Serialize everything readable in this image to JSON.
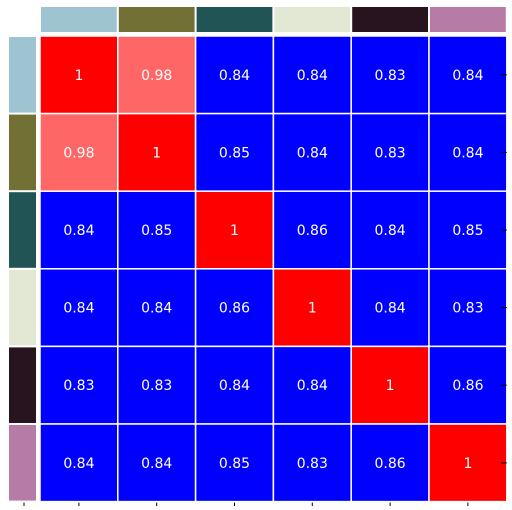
{
  "chart_data": {
    "type": "heatmap",
    "title": "",
    "xlabel": "",
    "ylabel": "",
    "rows": 6,
    "cols": 6,
    "values": [
      [
        "1",
        "0.98",
        "0.84",
        "0.84",
        "0.83",
        "0.84"
      ],
      [
        "0.98",
        "1",
        "0.85",
        "0.84",
        "0.83",
        "0.84"
      ],
      [
        "0.84",
        "0.85",
        "1",
        "0.86",
        "0.84",
        "0.85"
      ],
      [
        "0.84",
        "0.84",
        "0.86",
        "1",
        "0.84",
        "0.83"
      ],
      [
        "0.83",
        "0.83",
        "0.84",
        "0.84",
        "1",
        "0.86"
      ],
      [
        "0.84",
        "0.84",
        "0.85",
        "0.83",
        "0.86",
        "1"
      ]
    ],
    "cell_colors": [
      [
        "#ff0000",
        "#ff6666",
        "#0000ff",
        "#0000ff",
        "#0000ff",
        "#0000ff"
      ],
      [
        "#ff6666",
        "#ff0000",
        "#0000ff",
        "#0000ff",
        "#0000ff",
        "#0000ff"
      ],
      [
        "#0000ff",
        "#0000ff",
        "#ff0000",
        "#0000ff",
        "#0000ff",
        "#0000ff"
      ],
      [
        "#0000ff",
        "#0000ff",
        "#0000ff",
        "#ff0000",
        "#0000ff",
        "#0000ff"
      ],
      [
        "#0000ff",
        "#0000ff",
        "#0000ff",
        "#0000ff",
        "#ff0000",
        "#0000ff"
      ],
      [
        "#0000ff",
        "#0000ff",
        "#0000ff",
        "#0000ff",
        "#0000ff",
        "#ff0000"
      ]
    ],
    "group_colors": [
      "#9ec4d1",
      "#737036",
      "#215555",
      "#e3e8d5",
      "#27141f",
      "#b77ba7"
    ],
    "text_color": "#ffffff",
    "grid_line_color": "#ffffff"
  }
}
